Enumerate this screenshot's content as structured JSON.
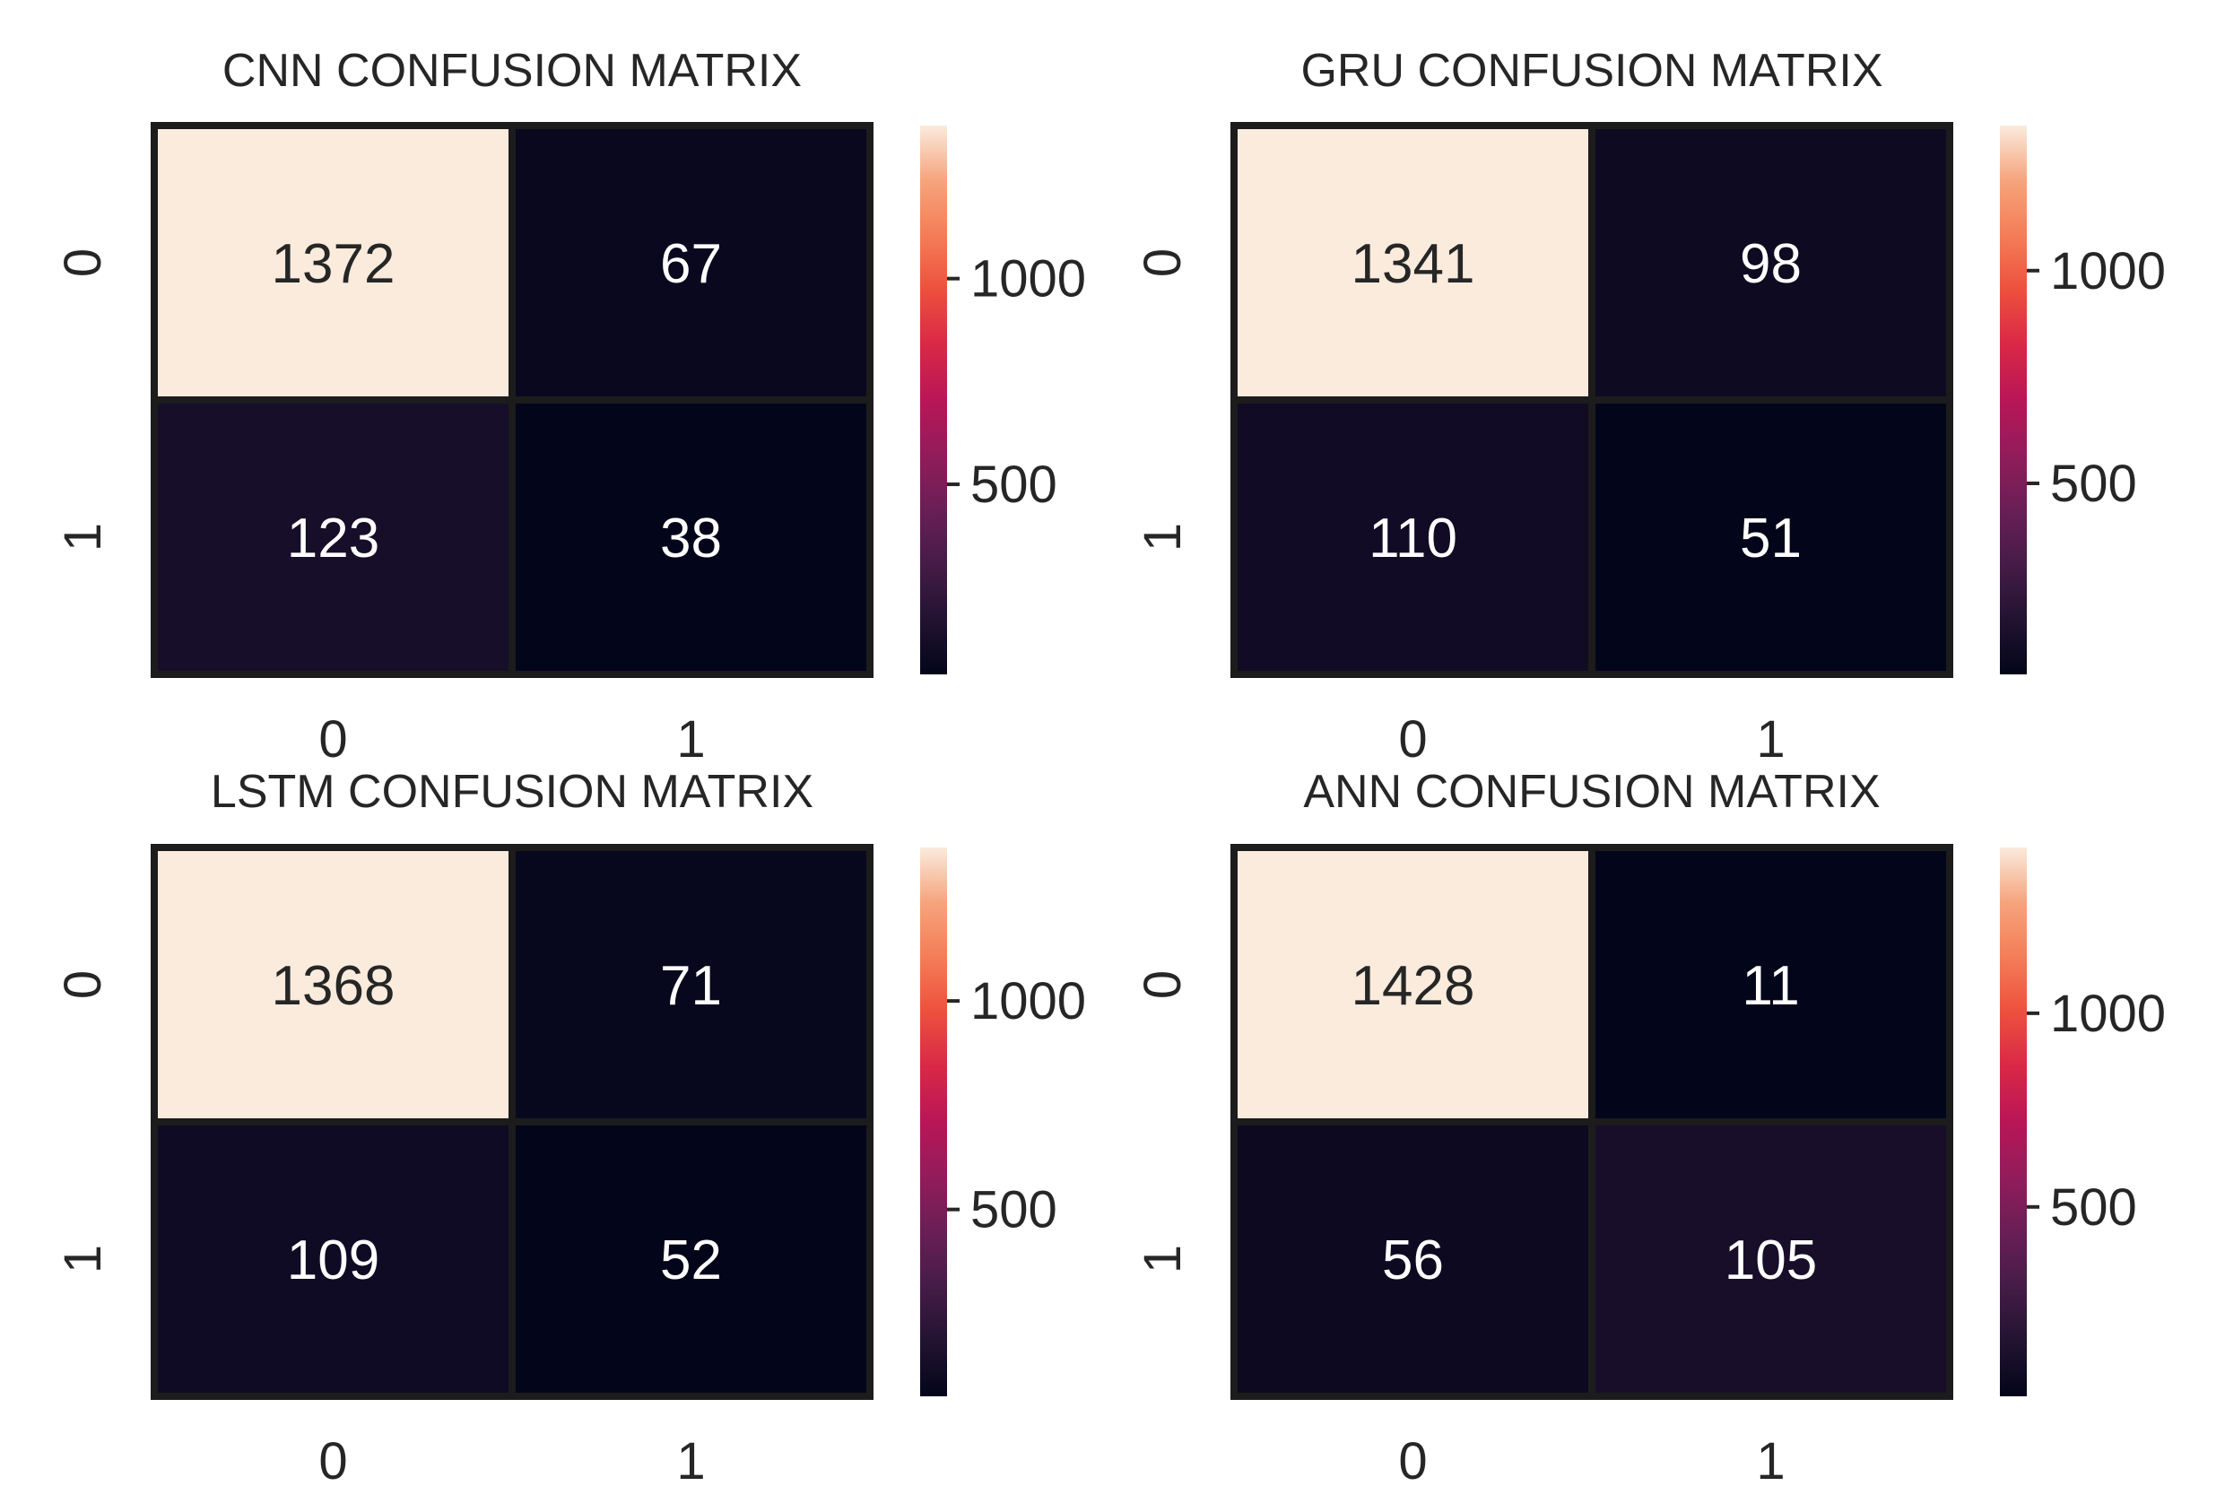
{
  "chart_data": [
    {
      "type": "heatmap",
      "title": "CNN CONFUSION MATRIX",
      "row_labels": [
        "0",
        "1"
      ],
      "col_labels": [
        "0",
        "1"
      ],
      "values": [
        [
          1372,
          67
        ],
        [
          123,
          38
        ]
      ],
      "colorbar": {
        "min": 38,
        "max": 1372,
        "ticks": [
          500,
          1000
        ],
        "tick_labels": [
          "500",
          "1000"
        ],
        "colormap": "rocket"
      }
    },
    {
      "type": "heatmap",
      "title": "GRU CONFUSION MATRIX",
      "row_labels": [
        "0",
        "1"
      ],
      "col_labels": [
        "0",
        "1"
      ],
      "values": [
        [
          1341,
          98
        ],
        [
          110,
          51
        ]
      ],
      "colorbar": {
        "min": 51,
        "max": 1341,
        "ticks": [
          500,
          1000
        ],
        "tick_labels": [
          "500",
          "1000"
        ],
        "colormap": "rocket"
      }
    },
    {
      "type": "heatmap",
      "title": "LSTM CONFUSION MATRIX",
      "row_labels": [
        "0",
        "1"
      ],
      "col_labels": [
        "0",
        "1"
      ],
      "values": [
        [
          1368,
          71
        ],
        [
          109,
          52
        ]
      ],
      "colorbar": {
        "min": 52,
        "max": 1368,
        "ticks": [
          500,
          1000
        ],
        "tick_labels": [
          "500",
          "1000"
        ],
        "colormap": "rocket"
      }
    },
    {
      "type": "heatmap",
      "title": "ANN CONFUSION MATRIX",
      "row_labels": [
        "0",
        "1"
      ],
      "col_labels": [
        "0",
        "1"
      ],
      "values": [
        [
          1428,
          11
        ],
        [
          56,
          105
        ]
      ],
      "colorbar": {
        "min": 11,
        "max": 1428,
        "ticks": [
          500,
          1000
        ],
        "tick_labels": [
          "500",
          "1000"
        ],
        "colormap": "rocket"
      }
    }
  ],
  "colors": {
    "background": "#ffffff",
    "text": "#262626",
    "cell_border": "#1c1c1c",
    "label_light": "#ffffff",
    "label_dark": "#262626"
  }
}
